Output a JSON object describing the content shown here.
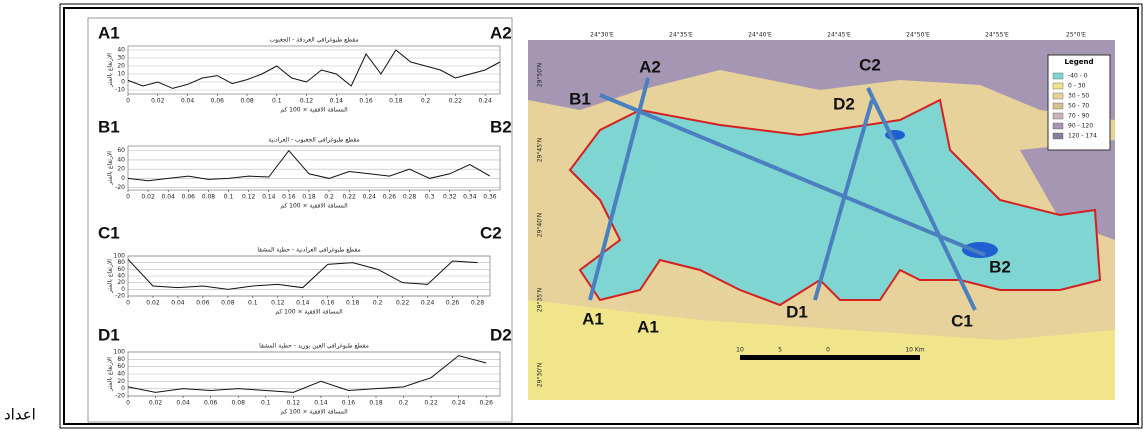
{
  "chart_data": [
    {
      "type": "line",
      "title": "مقطع طبوغرافي الغردقة - الجغبوب",
      "annotations": [
        "A1",
        "A2"
      ],
      "y_label": "الارتفاع بالمتر",
      "x_label": "المسافة الافقية × 100 كم",
      "x": [
        0,
        0.01,
        0.02,
        0.03,
        0.04,
        0.05,
        0.06,
        0.07,
        0.08,
        0.09,
        0.1,
        0.11,
        0.12,
        0.13,
        0.14,
        0.15,
        0.16,
        0.17,
        0.18,
        0.19,
        0.2,
        0.21,
        0.22,
        0.23,
        0.24,
        0.25
      ],
      "values": [
        2,
        -5,
        0,
        -8,
        -3,
        5,
        8,
        -2,
        3,
        10,
        20,
        5,
        0,
        15,
        10,
        -5,
        35,
        10,
        40,
        25,
        20,
        15,
        5,
        10,
        15,
        25
      ],
      "xlim": [
        0,
        0.25
      ],
      "ylim": [
        -15,
        45
      ],
      "xticks": [
        0,
        0.02,
        0.04,
        0.06,
        0.08,
        0.1,
        0.12,
        0.14,
        0.16,
        0.18,
        0.2,
        0.22,
        0.24
      ],
      "yticks": [
        -10,
        0,
        10,
        20,
        30,
        40
      ],
      "grid": true,
      "color": "#111"
    },
    {
      "type": "line",
      "title": "مقطع طبوغرافي الجغبوب - العرادنية",
      "annotations": [
        "B1",
        "B2"
      ],
      "y_label": "الارتفاع بالمتر",
      "x_label": "المسافة الافقية × 100 كم",
      "x": [
        0,
        0.02,
        0.04,
        0.06,
        0.08,
        0.1,
        0.12,
        0.14,
        0.16,
        0.18,
        0.2,
        0.22,
        0.24,
        0.26,
        0.28,
        0.3,
        0.32,
        0.34,
        0.36
      ],
      "values": [
        0,
        -5,
        0,
        5,
        -2,
        0,
        5,
        3,
        60,
        10,
        0,
        15,
        10,
        5,
        20,
        0,
        10,
        30,
        5
      ],
      "xlim": [
        0,
        0.37
      ],
      "ylim": [
        -25,
        70
      ],
      "xticks": [
        0,
        0.02,
        0.04,
        0.06,
        0.08,
        0.1,
        0.12,
        0.14,
        0.16,
        0.18,
        0.2,
        0.22,
        0.24,
        0.26,
        0.28,
        0.3,
        0.32,
        0.34,
        0.36
      ],
      "yticks": [
        -20,
        0,
        20,
        40,
        60
      ],
      "grid": true,
      "color": "#111"
    },
    {
      "type": "line",
      "title": "مقطع طبوغرافي العرادنية - حطية المشقا",
      "annotations": [
        "C1",
        "C2"
      ],
      "y_label": "الارتفاع بالمتر",
      "x_label": "المسافة الافقية × 100 كم",
      "x": [
        0,
        0.02,
        0.04,
        0.06,
        0.08,
        0.1,
        0.12,
        0.14,
        0.16,
        0.18,
        0.2,
        0.22,
        0.24,
        0.26,
        0.28
      ],
      "values": [
        90,
        10,
        5,
        10,
        0,
        10,
        15,
        5,
        75,
        80,
        60,
        20,
        15,
        85,
        80
      ],
      "xlim": [
        0,
        0.29
      ],
      "ylim": [
        -20,
        100
      ],
      "xticks": [
        0,
        0.02,
        0.04,
        0.06,
        0.08,
        0.1,
        0.12,
        0.14,
        0.16,
        0.18,
        0.2,
        0.22,
        0.24,
        0.26,
        0.28
      ],
      "yticks": [
        -20,
        0,
        20,
        40,
        60,
        80,
        100
      ],
      "grid": true,
      "color": "#111"
    },
    {
      "type": "line",
      "title": "مقطع طبوغرافي العين بوزيد - حطية المشقا",
      "annotations": [
        "D1",
        "D2"
      ],
      "y_label": "الارتفاع بالمتر",
      "x_label": "المسافة الافقية × 100 كم",
      "x": [
        0,
        0.02,
        0.04,
        0.06,
        0.08,
        0.1,
        0.12,
        0.14,
        0.16,
        0.18,
        0.2,
        0.22,
        0.24,
        0.26
      ],
      "values": [
        5,
        -10,
        0,
        -5,
        0,
        -5,
        -10,
        20,
        -5,
        0,
        5,
        30,
        90,
        70
      ],
      "xlim": [
        0,
        0.27
      ],
      "ylim": [
        -20,
        100
      ],
      "xticks": [
        0,
        0.02,
        0.04,
        0.06,
        0.08,
        0.1,
        0.12,
        0.14,
        0.16,
        0.18,
        0.2,
        0.22,
        0.24,
        0.26
      ],
      "yticks": [
        -20,
        0,
        20,
        40,
        60,
        80,
        100
      ],
      "grid": true,
      "color": "#111"
    }
  ],
  "map": {
    "longitudes": [
      "24°30'E",
      "24°35'E",
      "24°40'E",
      "24°45'E",
      "24°50'E",
      "24°55'E",
      "25°0'E"
    ],
    "latitudes": [
      "29°50'N",
      "29°45'N",
      "29°40'N",
      "29°35'N",
      "29°30'N"
    ],
    "labels": [
      "A2",
      "B1",
      "C2",
      "D2",
      "B2",
      "A1",
      "A1",
      "D1",
      "C1"
    ],
    "legend": {
      "title": "Legend",
      "items": [
        "-40 - 0",
        "0 - 30",
        "30 - 50",
        "50 - 70",
        "70 - 90",
        "90 - 120",
        "120 - 174"
      ]
    },
    "scale": [
      "10",
      "5",
      "0",
      "10 Km"
    ]
  },
  "footer": "اعداد"
}
